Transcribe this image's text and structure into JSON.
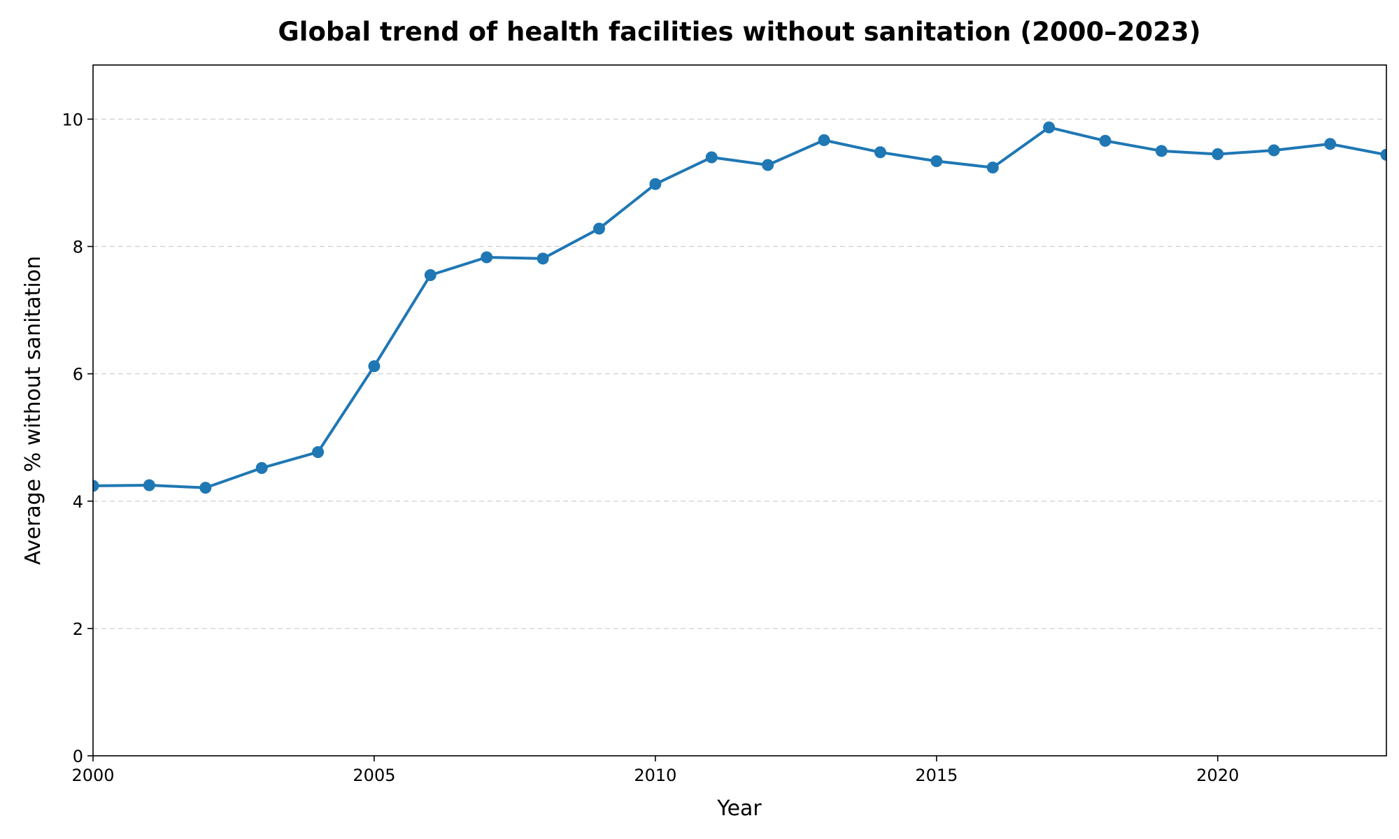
{
  "chart_data": {
    "type": "line",
    "title": "Global trend of health facilities without sanitation (2000–2023)",
    "xlabel": "Year",
    "ylabel": "Average % without sanitation",
    "xlim": [
      2000,
      2023
    ],
    "ylim": [
      0,
      10.85
    ],
    "xticks": [
      2000,
      2005,
      2010,
      2015,
      2020
    ],
    "yticks": [
      0,
      2,
      4,
      6,
      8,
      10
    ],
    "grid": "y-dashed",
    "color": "#1f77b4",
    "x": [
      2000,
      2001,
      2002,
      2003,
      2004,
      2005,
      2006,
      2007,
      2008,
      2009,
      2010,
      2011,
      2012,
      2013,
      2014,
      2015,
      2016,
      2017,
      2018,
      2019,
      2020,
      2021,
      2022,
      2023
    ],
    "series": [
      {
        "values": [
          4.24,
          4.25,
          4.21,
          4.52,
          4.77,
          6.12,
          7.55,
          7.83,
          7.81,
          8.28,
          8.98,
          9.4,
          9.28,
          9.67,
          9.48,
          9.34,
          9.24,
          9.87,
          9.66,
          9.5,
          9.45,
          9.51,
          9.61,
          9.44
        ]
      }
    ]
  }
}
